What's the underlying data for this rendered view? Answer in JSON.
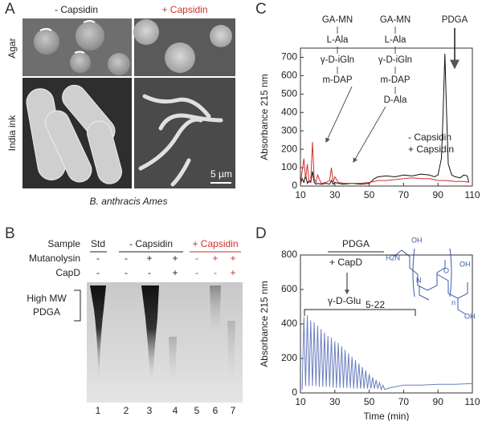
{
  "panel_a": {
    "label": "A",
    "columns": [
      "- Capsidin",
      "+ Capsidin"
    ],
    "rows": [
      "Agar",
      "India ink"
    ],
    "scale": "5 µm",
    "caption": "B. anthracis Ames"
  },
  "panel_b": {
    "label": "B",
    "sample_label": "Sample",
    "groups": [
      "Std",
      "- Capsidin",
      "+ Capsidin"
    ],
    "rows": [
      {
        "name": "Mutanolysin",
        "cells": [
          "-",
          "-",
          "+",
          "+",
          "-",
          "+",
          "+"
        ]
      },
      {
        "name": "CapD",
        "cells": [
          "-",
          "-",
          "-",
          "+",
          "-",
          "-",
          "+"
        ]
      }
    ],
    "lanes": [
      "1",
      "2",
      "3",
      "4",
      "5",
      "6",
      "7"
    ],
    "band_label": [
      "High MW",
      "PDGA"
    ]
  },
  "panel_c": {
    "label": "C"
  },
  "panel_d": {
    "label": "D",
    "structure_labels": [
      "OH",
      "H2N",
      "N",
      "O",
      "OH",
      "OH",
      "n"
    ]
  },
  "chart_data": [
    {
      "type": "line",
      "ylabel": "Absorbance 215 nm",
      "xlim": [
        10,
        110
      ],
      "xticks": [
        10,
        30,
        50,
        70,
        90,
        110
      ],
      "ylim": [
        0,
        750
      ],
      "yticks": [
        0,
        100,
        200,
        300,
        400,
        500,
        600,
        700
      ],
      "x": [
        10,
        11,
        12,
        13,
        14,
        15,
        16,
        17,
        18,
        19,
        20,
        22,
        25,
        27,
        28,
        29,
        30,
        32,
        35,
        40,
        45,
        50,
        53,
        55,
        60,
        65,
        70,
        75,
        80,
        85,
        88,
        90,
        92,
        93,
        94,
        95,
        96,
        98,
        100,
        103,
        105,
        107,
        108
      ],
      "series": [
        {
          "name": "- Capsidin",
          "color": "#111111",
          "values": [
            10,
            40,
            20,
            60,
            15,
            30,
            20,
            80,
            20,
            10,
            15,
            10,
            15,
            10,
            30,
            10,
            20,
            15,
            10,
            15,
            10,
            15,
            40,
            50,
            55,
            50,
            60,
            55,
            65,
            60,
            50,
            60,
            150,
            400,
            720,
            400,
            120,
            60,
            50,
            45,
            60,
            55,
            20
          ]
        },
        {
          "name": "+ Capsidin",
          "color": "#d0312d",
          "values": [
            10,
            80,
            150,
            40,
            120,
            20,
            30,
            240,
            40,
            20,
            60,
            15,
            20,
            30,
            100,
            20,
            50,
            20,
            15,
            15,
            15,
            20,
            25,
            30,
            30,
            35,
            40,
            45,
            40,
            40,
            35,
            30,
            30,
            30,
            30,
            30,
            28,
            28,
            25,
            25,
            25,
            22,
            20
          ]
        }
      ],
      "annotations": {
        "left": [
          "GA-MN",
          "L-Ala",
          "γ-D-iGln",
          "m-DAP"
        ],
        "right": [
          "GA-MN",
          "L-Ala",
          "γ-D-iGln",
          "m-DAP",
          "D-Ala"
        ],
        "peak": "PDGA"
      }
    },
    {
      "type": "line",
      "xlabel": "Time (min)",
      "ylabel": "Absorbance 215 nm",
      "xlim": [
        10,
        110
      ],
      "xticks": [
        10,
        30,
        50,
        70,
        90,
        110
      ],
      "ylim": [
        0,
        800
      ],
      "yticks": [
        0,
        200,
        400,
        600,
        800
      ],
      "x": [
        11,
        12,
        13,
        14,
        15,
        16,
        17,
        18,
        19,
        20,
        21,
        22,
        23,
        24,
        25,
        26,
        27,
        28,
        29,
        30,
        31,
        32,
        33,
        34,
        35,
        36,
        37,
        38,
        39,
        40,
        41,
        42,
        43,
        44,
        45,
        46,
        47,
        48,
        49,
        50,
        51,
        52,
        53,
        54,
        55,
        56,
        57,
        58,
        59,
        62,
        70,
        80,
        90,
        100,
        110
      ],
      "series": [
        {
          "color": "#6a7fc0",
          "values": [
            20,
            440,
            40,
            450,
            40,
            420,
            40,
            410,
            40,
            390,
            35,
            370,
            35,
            350,
            35,
            330,
            35,
            320,
            30,
            300,
            30,
            290,
            30,
            270,
            30,
            250,
            30,
            230,
            30,
            210,
            25,
            190,
            25,
            170,
            25,
            150,
            25,
            130,
            25,
            110,
            25,
            90,
            25,
            75,
            25,
            60,
            20,
            45,
            20,
            30,
            45,
            45,
            50,
            50,
            55
          ]
        }
      ],
      "annotations": {
        "substrate": "PDGA",
        "enzyme": "+ CapD",
        "product": "γ-D-Glu",
        "product_subscript": "5-22"
      }
    }
  ]
}
